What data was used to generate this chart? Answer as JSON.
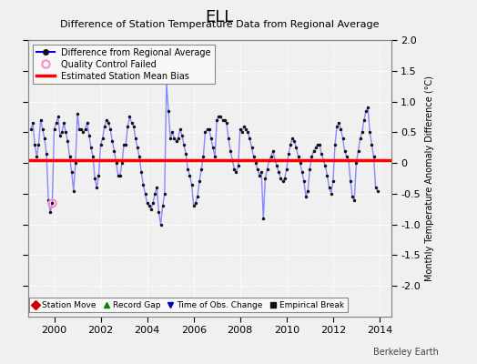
{
  "title": "ELL",
  "subtitle": "Difference of Station Temperature Data from Regional Average",
  "ylabel": "Monthly Temperature Anomaly Difference (°C)",
  "xlim": [
    1998.9,
    2014.5
  ],
  "ylim": [
    -2.5,
    2.0
  ],
  "yticks": [
    -2.0,
    -1.5,
    -1.0,
    -0.5,
    0.0,
    0.5,
    1.0,
    1.5,
    2.0
  ],
  "xticks": [
    2000,
    2002,
    2004,
    2006,
    2008,
    2010,
    2012,
    2014
  ],
  "bias_level": 0.05,
  "background_color": "#f0f0f0",
  "plot_bg_color": "#f0f0f0",
  "line_color": "#8888ff",
  "marker_color": "#111111",
  "bias_color": "#ff0000",
  "qc_failed_color": "#ff88cc",
  "watermark": "Berkeley Earth",
  "data_x": [
    1999.0,
    1999.083,
    1999.167,
    1999.25,
    1999.333,
    1999.417,
    1999.5,
    1999.583,
    1999.667,
    1999.75,
    1999.833,
    1999.917,
    2000.0,
    2000.083,
    2000.167,
    2000.25,
    2000.333,
    2000.417,
    2000.5,
    2000.583,
    2000.667,
    2000.75,
    2000.833,
    2000.917,
    2001.0,
    2001.083,
    2001.167,
    2001.25,
    2001.333,
    2001.417,
    2001.5,
    2001.583,
    2001.667,
    2001.75,
    2001.833,
    2001.917,
    2002.0,
    2002.083,
    2002.167,
    2002.25,
    2002.333,
    2002.417,
    2002.5,
    2002.583,
    2002.667,
    2002.75,
    2002.833,
    2002.917,
    2003.0,
    2003.083,
    2003.167,
    2003.25,
    2003.333,
    2003.417,
    2003.5,
    2003.583,
    2003.667,
    2003.75,
    2003.833,
    2003.917,
    2004.0,
    2004.083,
    2004.167,
    2004.25,
    2004.333,
    2004.417,
    2004.5,
    2004.583,
    2004.667,
    2004.75,
    2004.833,
    2004.917,
    2005.0,
    2005.083,
    2005.167,
    2005.25,
    2005.333,
    2005.417,
    2005.5,
    2005.583,
    2005.667,
    2005.75,
    2005.833,
    2005.917,
    2006.0,
    2006.083,
    2006.167,
    2006.25,
    2006.333,
    2006.417,
    2006.5,
    2006.583,
    2006.667,
    2006.75,
    2006.833,
    2006.917,
    2007.0,
    2007.083,
    2007.167,
    2007.25,
    2007.333,
    2007.417,
    2007.5,
    2007.583,
    2007.667,
    2007.75,
    2007.833,
    2007.917,
    2008.0,
    2008.083,
    2008.167,
    2008.25,
    2008.333,
    2008.417,
    2008.5,
    2008.583,
    2008.667,
    2008.75,
    2008.833,
    2008.917,
    2009.0,
    2009.083,
    2009.167,
    2009.25,
    2009.333,
    2009.417,
    2009.5,
    2009.583,
    2009.667,
    2009.75,
    2009.833,
    2009.917,
    2010.0,
    2010.083,
    2010.167,
    2010.25,
    2010.333,
    2010.417,
    2010.5,
    2010.583,
    2010.667,
    2010.75,
    2010.833,
    2010.917,
    2011.0,
    2011.083,
    2011.167,
    2011.25,
    2011.333,
    2011.417,
    2011.5,
    2011.583,
    2011.667,
    2011.75,
    2011.833,
    2011.917,
    2012.0,
    2012.083,
    2012.167,
    2012.25,
    2012.333,
    2012.417,
    2012.5,
    2012.583,
    2012.667,
    2012.75,
    2012.833,
    2012.917,
    2013.0,
    2013.083,
    2013.167,
    2013.25,
    2013.333,
    2013.417,
    2013.5,
    2013.583,
    2013.667,
    2013.75,
    2013.833,
    2013.917
  ],
  "data_y": [
    0.55,
    0.65,
    0.3,
    0.1,
    0.3,
    0.7,
    0.55,
    0.4,
    0.15,
    -0.6,
    -0.8,
    -0.65,
    0.55,
    0.65,
    0.75,
    0.45,
    0.5,
    0.65,
    0.5,
    0.35,
    0.1,
    -0.15,
    -0.45,
    0.0,
    0.8,
    0.55,
    0.55,
    0.5,
    0.55,
    0.65,
    0.45,
    0.25,
    0.1,
    -0.25,
    -0.4,
    -0.2,
    0.3,
    0.4,
    0.6,
    0.7,
    0.65,
    0.55,
    0.35,
    0.2,
    0.0,
    -0.2,
    -0.2,
    0.0,
    0.3,
    0.3,
    0.6,
    0.75,
    0.65,
    0.6,
    0.4,
    0.25,
    0.1,
    -0.15,
    -0.35,
    -0.5,
    -0.65,
    -0.7,
    -0.75,
    -0.65,
    -0.5,
    -0.4,
    -0.8,
    -1.0,
    -0.7,
    -0.5,
    1.3,
    0.85,
    0.4,
    0.5,
    0.4,
    0.35,
    0.4,
    0.55,
    0.45,
    0.3,
    0.15,
    -0.1,
    -0.2,
    -0.35,
    -0.7,
    -0.65,
    -0.55,
    -0.3,
    -0.1,
    0.1,
    0.5,
    0.55,
    0.55,
    0.4,
    0.25,
    0.1,
    0.7,
    0.75,
    0.75,
    0.7,
    0.7,
    0.65,
    0.4,
    0.2,
    0.05,
    -0.1,
    -0.15,
    -0.05,
    0.55,
    0.5,
    0.6,
    0.55,
    0.5,
    0.4,
    0.25,
    0.1,
    0.0,
    -0.1,
    -0.2,
    -0.15,
    -0.9,
    -0.25,
    -0.1,
    0.05,
    0.1,
    0.2,
    0.05,
    -0.05,
    -0.15,
    -0.25,
    -0.3,
    -0.25,
    -0.1,
    0.15,
    0.3,
    0.4,
    0.35,
    0.25,
    0.1,
    0.0,
    -0.15,
    -0.3,
    -0.55,
    -0.45,
    -0.1,
    0.1,
    0.2,
    0.25,
    0.3,
    0.3,
    0.15,
    0.05,
    -0.05,
    -0.2,
    -0.4,
    -0.5,
    -0.3,
    0.3,
    0.6,
    0.65,
    0.55,
    0.4,
    0.2,
    0.1,
    0.05,
    -0.3,
    -0.55,
    -0.6,
    0.0,
    0.2,
    0.4,
    0.5,
    0.7,
    0.85,
    0.9,
    0.5,
    0.3,
    0.1,
    -0.4,
    -0.45
  ],
  "qc_x": [
    1999.917
  ],
  "qc_y": [
    -0.65
  ]
}
